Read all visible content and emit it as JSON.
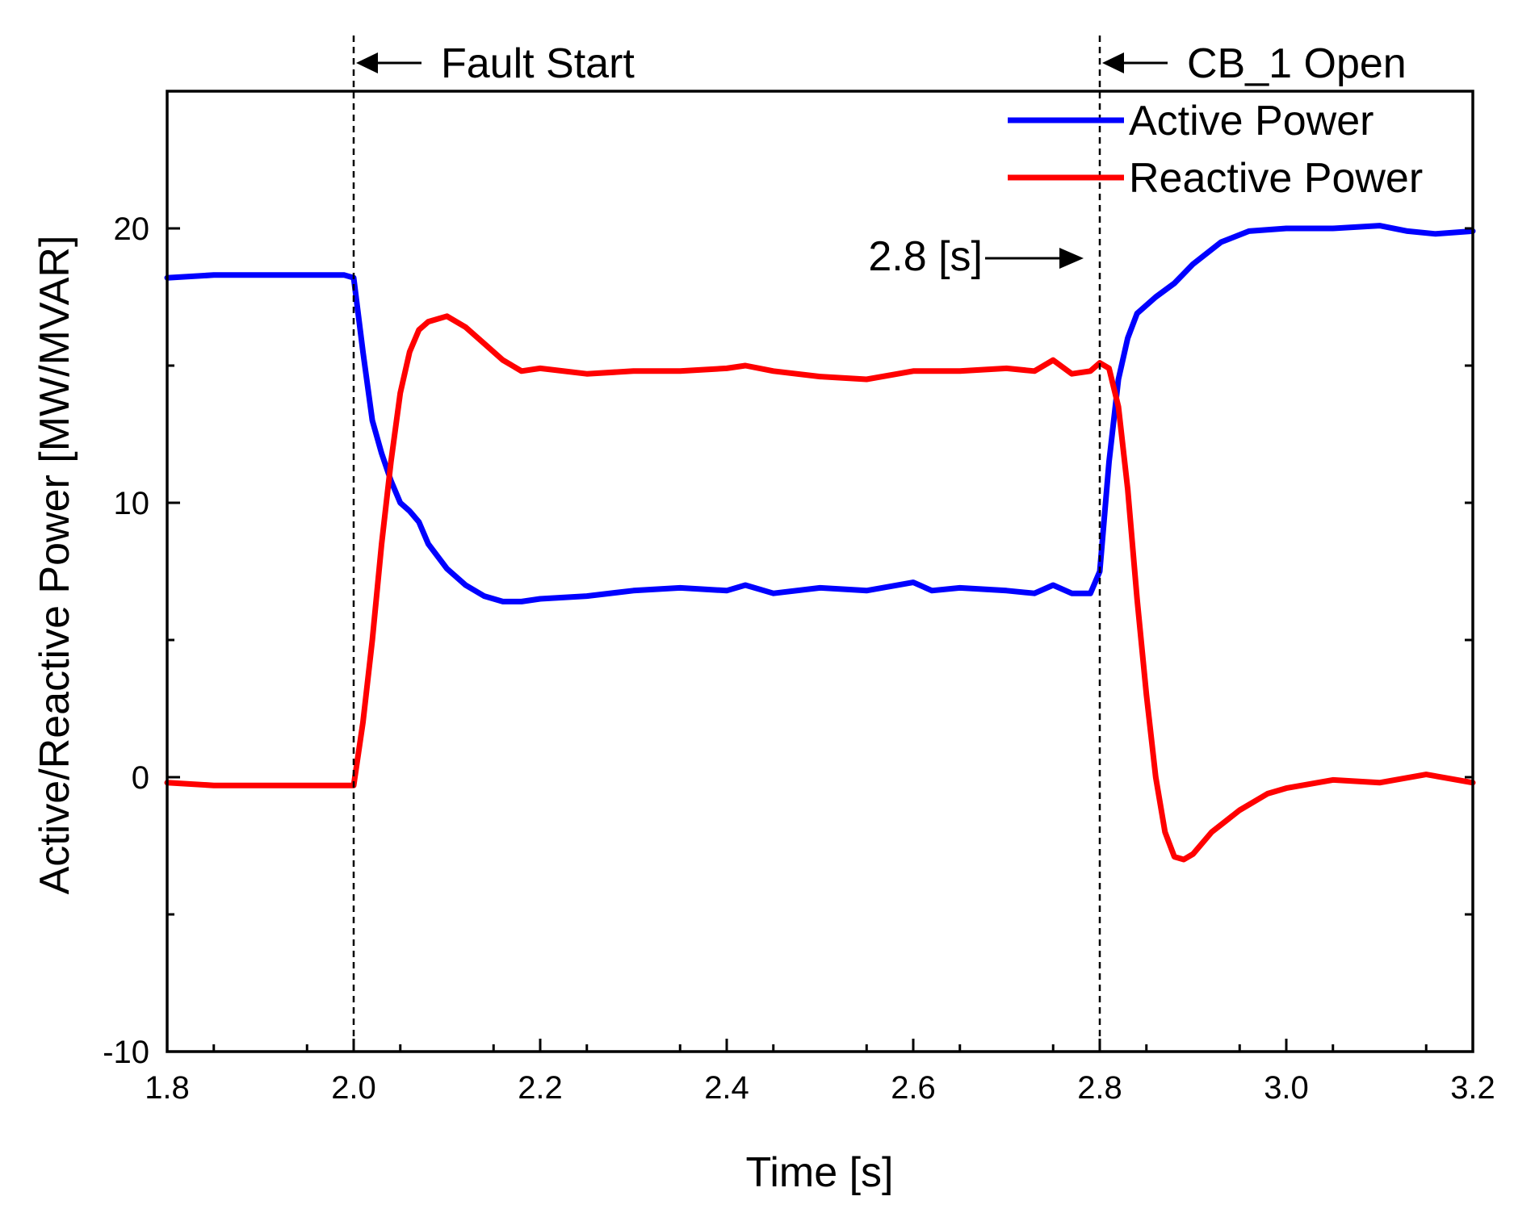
{
  "chart_data": {
    "type": "line",
    "title": "",
    "xlabel": "Time [s]",
    "ylabel": "Active/Reactive Power [MW/MVAR]",
    "xlim": [
      1.8,
      3.2
    ],
    "ylim": [
      -10,
      25
    ],
    "xticks": [
      "1.8",
      "2.0",
      "2.2",
      "2.4",
      "2.6",
      "2.8",
      "3.0",
      "3.2"
    ],
    "xtick_values": [
      1.8,
      2.0,
      2.2,
      2.4,
      2.6,
      2.8,
      3.0,
      3.2
    ],
    "yticks": [
      "-10",
      "0",
      "10",
      "20"
    ],
    "ytick_values": [
      -10,
      0,
      10,
      20
    ],
    "grid": false,
    "legend_position": "top-right",
    "annotations": [
      {
        "text": "Fault Start",
        "x": 2.0,
        "kind": "vline-arrow-left"
      },
      {
        "text": "CB_1 Open",
        "x": 2.8,
        "kind": "vline-arrow-left"
      },
      {
        "text": "2.8 [s]",
        "x": 2.8,
        "y": 19.1,
        "kind": "arrow-right"
      }
    ],
    "series": [
      {
        "name": "Active Power",
        "color": "#0000ff",
        "x": [
          1.8,
          1.85,
          1.9,
          1.95,
          1.99,
          2.0,
          2.01,
          2.02,
          2.03,
          2.04,
          2.05,
          2.06,
          2.07,
          2.08,
          2.1,
          2.12,
          2.14,
          2.16,
          2.18,
          2.2,
          2.25,
          2.3,
          2.35,
          2.4,
          2.42,
          2.45,
          2.5,
          2.55,
          2.6,
          2.62,
          2.65,
          2.7,
          2.73,
          2.75,
          2.77,
          2.79,
          2.8,
          2.81,
          2.82,
          2.83,
          2.84,
          2.86,
          2.88,
          2.9,
          2.93,
          2.96,
          3.0,
          3.05,
          3.1,
          3.13,
          3.16,
          3.2
        ],
        "values": [
          18.2,
          18.3,
          18.3,
          18.3,
          18.3,
          18.2,
          15.5,
          13.0,
          11.8,
          10.8,
          10.0,
          9.7,
          9.3,
          8.5,
          7.6,
          7.0,
          6.6,
          6.4,
          6.4,
          6.5,
          6.6,
          6.8,
          6.9,
          6.8,
          7.0,
          6.7,
          6.9,
          6.8,
          7.1,
          6.8,
          6.9,
          6.8,
          6.7,
          7.0,
          6.7,
          6.7,
          7.5,
          11.5,
          14.5,
          16.0,
          16.9,
          17.5,
          18.0,
          18.7,
          19.5,
          19.9,
          20.0,
          20.0,
          20.1,
          19.9,
          19.8,
          19.9
        ]
      },
      {
        "name": "Reactive Power",
        "color": "#ff0000",
        "x": [
          1.8,
          1.85,
          1.9,
          1.95,
          1.99,
          2.0,
          2.01,
          2.02,
          2.03,
          2.04,
          2.05,
          2.06,
          2.07,
          2.08,
          2.1,
          2.12,
          2.14,
          2.16,
          2.18,
          2.2,
          2.25,
          2.3,
          2.35,
          2.4,
          2.42,
          2.45,
          2.5,
          2.55,
          2.6,
          2.65,
          2.7,
          2.73,
          2.75,
          2.77,
          2.79,
          2.8,
          2.81,
          2.82,
          2.83,
          2.84,
          2.85,
          2.86,
          2.87,
          2.88,
          2.89,
          2.9,
          2.92,
          2.95,
          2.98,
          3.0,
          3.05,
          3.1,
          3.15,
          3.2
        ],
        "values": [
          -0.2,
          -0.3,
          -0.3,
          -0.3,
          -0.3,
          -0.3,
          2.0,
          5.0,
          8.5,
          11.5,
          14.0,
          15.5,
          16.3,
          16.6,
          16.8,
          16.4,
          15.8,
          15.2,
          14.8,
          14.9,
          14.7,
          14.8,
          14.8,
          14.9,
          15.0,
          14.8,
          14.6,
          14.5,
          14.8,
          14.8,
          14.9,
          14.8,
          15.2,
          14.7,
          14.8,
          15.1,
          14.9,
          13.5,
          10.5,
          6.5,
          3.0,
          0.0,
          -2.0,
          -2.9,
          -3.0,
          -2.8,
          -2.0,
          -1.2,
          -0.6,
          -0.4,
          -0.1,
          -0.2,
          0.1,
          -0.2
        ]
      }
    ]
  }
}
